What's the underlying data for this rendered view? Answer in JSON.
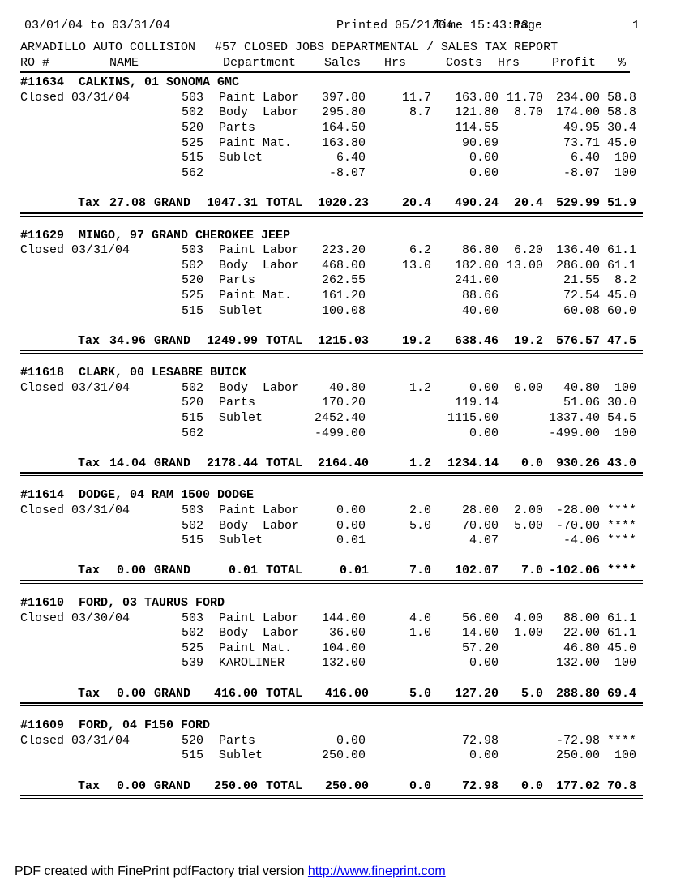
{
  "page": {
    "date_range": "03/01/04 to 03/31/04",
    "printed": "Printed 05/21/04",
    "time": "Time 15:43:13",
    "page_label": "Page",
    "page_number": "1",
    "company": "ARMADILLO AUTO COLLISION",
    "report_title": "#57 CLOSED JOBS DEPARTMENTAL / SALES TAX REPORT"
  },
  "columns": [
    "RO #",
    "NAME",
    "Department",
    "Sales",
    "Hrs",
    "Costs",
    "Hrs",
    "Profit",
    "%"
  ],
  "totals_labels": {
    "tax": "Tax",
    "grand": "GRAND",
    "total": "TOTAL"
  },
  "jobs": [
    {
      "ro": "#11634",
      "name": "CALKINS, 01 SONOMA GMC",
      "closed": "Closed 03/31/04",
      "rows": [
        {
          "code": "503",
          "dept": "Paint Labor",
          "sales": "397.80",
          "hrs": "11.7",
          "costs": "163.80",
          "hrs2": "11.70",
          "profit": "234.00",
          "pct": "58.8"
        },
        {
          "code": "502",
          "dept": "Body  Labor",
          "sales": "295.80",
          "hrs": "8.7",
          "costs": "121.80",
          "hrs2": "8.70",
          "profit": "174.00",
          "pct": "58.8"
        },
        {
          "code": "520",
          "dept": "Parts",
          "sales": "164.50",
          "hrs": "",
          "costs": "114.55",
          "hrs2": "",
          "profit": "49.95",
          "pct": "30.4"
        },
        {
          "code": "525",
          "dept": "Paint Mat.",
          "sales": "163.80",
          "hrs": "",
          "costs": "90.09",
          "hrs2": "",
          "profit": "73.71",
          "pct": "45.0"
        },
        {
          "code": "515",
          "dept": "Sublet",
          "sales": "6.40",
          "hrs": "",
          "costs": "0.00",
          "hrs2": "",
          "profit": "6.40",
          "pct": "100"
        },
        {
          "code": "562",
          "dept": "",
          "sales": "-8.07",
          "hrs": "",
          "costs": "0.00",
          "hrs2": "",
          "profit": "-8.07",
          "pct": "100"
        }
      ],
      "totals": {
        "tax": "27.08",
        "grand": "1047.31",
        "sales": "1020.23",
        "hrs": "20.4",
        "costs": "490.24",
        "hrs2": "20.4",
        "profit": "529.99",
        "pct": "51.9"
      }
    },
    {
      "ro": "#11629",
      "name": "MINGO, 97 GRAND CHEROKEE JEEP",
      "closed": "Closed 03/31/04",
      "rows": [
        {
          "code": "503",
          "dept": "Paint Labor",
          "sales": "223.20",
          "hrs": "6.2",
          "costs": "86.80",
          "hrs2": "6.20",
          "profit": "136.40",
          "pct": "61.1"
        },
        {
          "code": "502",
          "dept": "Body  Labor",
          "sales": "468.00",
          "hrs": "13.0",
          "costs": "182.00",
          "hrs2": "13.00",
          "profit": "286.00",
          "pct": "61.1"
        },
        {
          "code": "520",
          "dept": "Parts",
          "sales": "262.55",
          "hrs": "",
          "costs": "241.00",
          "hrs2": "",
          "profit": "21.55",
          "pct": "8.2"
        },
        {
          "code": "525",
          "dept": "Paint Mat.",
          "sales": "161.20",
          "hrs": "",
          "costs": "88.66",
          "hrs2": "",
          "profit": "72.54",
          "pct": "45.0"
        },
        {
          "code": "515",
          "dept": "Sublet",
          "sales": "100.08",
          "hrs": "",
          "costs": "40.00",
          "hrs2": "",
          "profit": "60.08",
          "pct": "60.0"
        }
      ],
      "totals": {
        "tax": "34.96",
        "grand": "1249.99",
        "sales": "1215.03",
        "hrs": "19.2",
        "costs": "638.46",
        "hrs2": "19.2",
        "profit": "576.57",
        "pct": "47.5"
      }
    },
    {
      "ro": "#11618",
      "name": "CLARK, 00 LESABRE BUICK",
      "closed": "Closed 03/31/04",
      "rows": [
        {
          "code": "502",
          "dept": "Body  Labor",
          "sales": "40.80",
          "hrs": "1.2",
          "costs": "0.00",
          "hrs2": "0.00",
          "profit": "40.80",
          "pct": "100"
        },
        {
          "code": "520",
          "dept": "Parts",
          "sales": "170.20",
          "hrs": "",
          "costs": "119.14",
          "hrs2": "",
          "profit": "51.06",
          "pct": "30.0"
        },
        {
          "code": "515",
          "dept": "Sublet",
          "sales": "2452.40",
          "hrs": "",
          "costs": "1115.00",
          "hrs2": "",
          "profit": "1337.40",
          "pct": "54.5"
        },
        {
          "code": "562",
          "dept": "",
          "sales": "-499.00",
          "hrs": "",
          "costs": "0.00",
          "hrs2": "",
          "profit": "-499.00",
          "pct": "100"
        }
      ],
      "totals": {
        "tax": "14.04",
        "grand": "2178.44",
        "sales": "2164.40",
        "hrs": "1.2",
        "costs": "1234.14",
        "hrs2": "0.0",
        "profit": "930.26",
        "pct": "43.0"
      }
    },
    {
      "ro": "#11614",
      "name": "DODGE, 04 RAM 1500 DODGE",
      "closed": "Closed 03/31/04",
      "rows": [
        {
          "code": "503",
          "dept": "Paint Labor",
          "sales": "0.00",
          "hrs": "2.0",
          "costs": "28.00",
          "hrs2": "2.00",
          "profit": "-28.00",
          "pct": "****"
        },
        {
          "code": "502",
          "dept": "Body  Labor",
          "sales": "0.00",
          "hrs": "5.0",
          "costs": "70.00",
          "hrs2": "5.00",
          "profit": "-70.00",
          "pct": "****"
        },
        {
          "code": "515",
          "dept": "Sublet",
          "sales": "0.01",
          "hrs": "",
          "costs": "4.07",
          "hrs2": "",
          "profit": "-4.06",
          "pct": "****"
        }
      ],
      "totals": {
        "tax": "0.00",
        "grand": "0.01",
        "sales": "0.01",
        "hrs": "7.0",
        "costs": "102.07",
        "hrs2": "7.0",
        "profit": "-102.06",
        "pct": "****"
      }
    },
    {
      "ro": "#11610",
      "name": "FORD, 03 TAURUS FORD",
      "closed": "Closed 03/30/04",
      "rows": [
        {
          "code": "503",
          "dept": "Paint Labor",
          "sales": "144.00",
          "hrs": "4.0",
          "costs": "56.00",
          "hrs2": "4.00",
          "profit": "88.00",
          "pct": "61.1"
        },
        {
          "code": "502",
          "dept": "Body  Labor",
          "sales": "36.00",
          "hrs": "1.0",
          "costs": "14.00",
          "hrs2": "1.00",
          "profit": "22.00",
          "pct": "61.1"
        },
        {
          "code": "525",
          "dept": "Paint Mat.",
          "sales": "104.00",
          "hrs": "",
          "costs": "57.20",
          "hrs2": "",
          "profit": "46.80",
          "pct": "45.0"
        },
        {
          "code": "539",
          "dept": "KAROLINER",
          "sales": "132.00",
          "hrs": "",
          "costs": "0.00",
          "hrs2": "",
          "profit": "132.00",
          "pct": "100"
        }
      ],
      "totals": {
        "tax": "0.00",
        "grand": "416.00",
        "sales": "416.00",
        "hrs": "5.0",
        "costs": "127.20",
        "hrs2": "5.0",
        "profit": "288.80",
        "pct": "69.4"
      }
    },
    {
      "ro": "#11609",
      "name": "FORD, 04 F150 FORD",
      "closed": "Closed 03/31/04",
      "rows": [
        {
          "code": "520",
          "dept": "Parts",
          "sales": "0.00",
          "hrs": "",
          "costs": "72.98",
          "hrs2": "",
          "profit": "-72.98",
          "pct": "****"
        },
        {
          "code": "515",
          "dept": "Sublet",
          "sales": "250.00",
          "hrs": "",
          "costs": "0.00",
          "hrs2": "",
          "profit": "250.00",
          "pct": "100"
        }
      ],
      "totals": {
        "tax": "0.00",
        "grand": "250.00",
        "sales": "250.00",
        "hrs": "0.0",
        "costs": "72.98",
        "hrs2": "0.0",
        "profit": "177.02",
        "pct": "70.8"
      }
    }
  ],
  "footer": {
    "text": "PDF created with FinePrint pdfFactory trial version ",
    "link": "http://www.fineprint.com",
    "link_color": "#0000ee"
  }
}
